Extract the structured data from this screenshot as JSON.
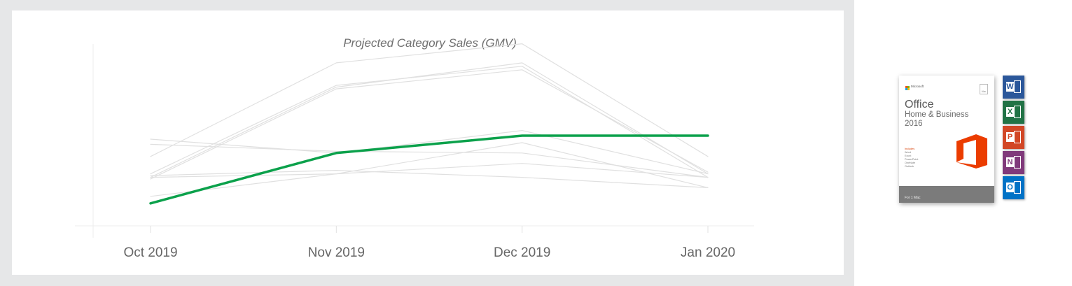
{
  "chart_data": {
    "type": "line",
    "title": "Projected Category Sales (GMV)",
    "xlabel": "",
    "ylabel": "",
    "categories": [
      "Oct 2019",
      "Nov 2019",
      "Dec 2019",
      "Jan 2020"
    ],
    "ylim": [
      0,
      100
    ],
    "grid": false,
    "highlight_color": "#0ba14b",
    "background_color": "#e0e0e0",
    "series": [
      {
        "highlight": true,
        "values": [
          13,
          42,
          52,
          52
        ]
      },
      {
        "highlight": false,
        "values": [
          30,
          81,
          92,
          28
        ]
      },
      {
        "highlight": false,
        "values": [
          28,
          80,
          94,
          30
        ]
      },
      {
        "highlight": false,
        "values": [
          27,
          79,
          90,
          31
        ]
      },
      {
        "highlight": false,
        "values": [
          40,
          94,
          105,
          40
        ]
      },
      {
        "highlight": false,
        "values": [
          50,
          42,
          55,
          30
        ]
      },
      {
        "highlight": false,
        "values": [
          47,
          43,
          42,
          28
        ]
      },
      {
        "highlight": false,
        "values": [
          29,
          32,
          28,
          22
        ]
      },
      {
        "highlight": false,
        "values": [
          17,
          30,
          48,
          22
        ]
      },
      {
        "highlight": false,
        "values": [
          28,
          30,
          36,
          28
        ]
      }
    ]
  },
  "product": {
    "brand": "Microsoft",
    "mac_badge": "Mac",
    "name": "Office",
    "edition": "Home & Business",
    "year": "2016",
    "includes_heading": "Includes",
    "includes_items": [
      "Word",
      "Excel",
      "PowerPoint",
      "OneNote",
      "Outlook"
    ],
    "footer": "For 1 Mac",
    "app_icons": [
      {
        "letter": "W",
        "color": "#2b579a"
      },
      {
        "letter": "X",
        "color": "#217346"
      },
      {
        "letter": "P",
        "color": "#d24726"
      },
      {
        "letter": "N",
        "color": "#80397b"
      },
      {
        "letter": "O",
        "color": "#0072c6"
      }
    ],
    "logo_color": "#eb3c00"
  }
}
